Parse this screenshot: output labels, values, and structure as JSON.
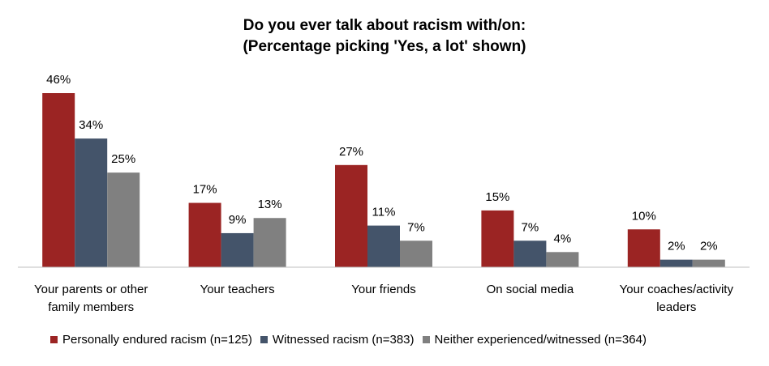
{
  "chart_data": {
    "type": "bar",
    "title": "Do you ever talk about racism with/on:",
    "subtitle": "(Percentage picking 'Yes, a lot' shown)",
    "categories": [
      [
        "Your parents or other",
        "family members"
      ],
      [
        "Your teachers"
      ],
      [
        "Your friends"
      ],
      [
        "On social media"
      ],
      [
        "Your coaches/activity",
        "leaders"
      ]
    ],
    "series": [
      {
        "name": "Personally endured racism (n=125)",
        "color": "#9B2423",
        "values": [
          46,
          17,
          27,
          15,
          10
        ],
        "labels": [
          "46%",
          "17%",
          "27%",
          "15%",
          "10%"
        ]
      },
      {
        "name": "Witnessed racism (n=383)",
        "color": "#44546A",
        "values": [
          34,
          9,
          11,
          7,
          2
        ],
        "labels": [
          "34%",
          "9%",
          "11%",
          "7%",
          "2%"
        ]
      },
      {
        "name": "Neither experienced/witnessed (n=364)",
        "color": "#808080",
        "values": [
          25,
          13,
          7,
          4,
          2
        ],
        "labels": [
          "25%",
          "13%",
          "7%",
          "4%",
          "2%"
        ]
      }
    ],
    "ylim": [
      0,
      46
    ],
    "grid": false,
    "legend_position": "bottom"
  }
}
